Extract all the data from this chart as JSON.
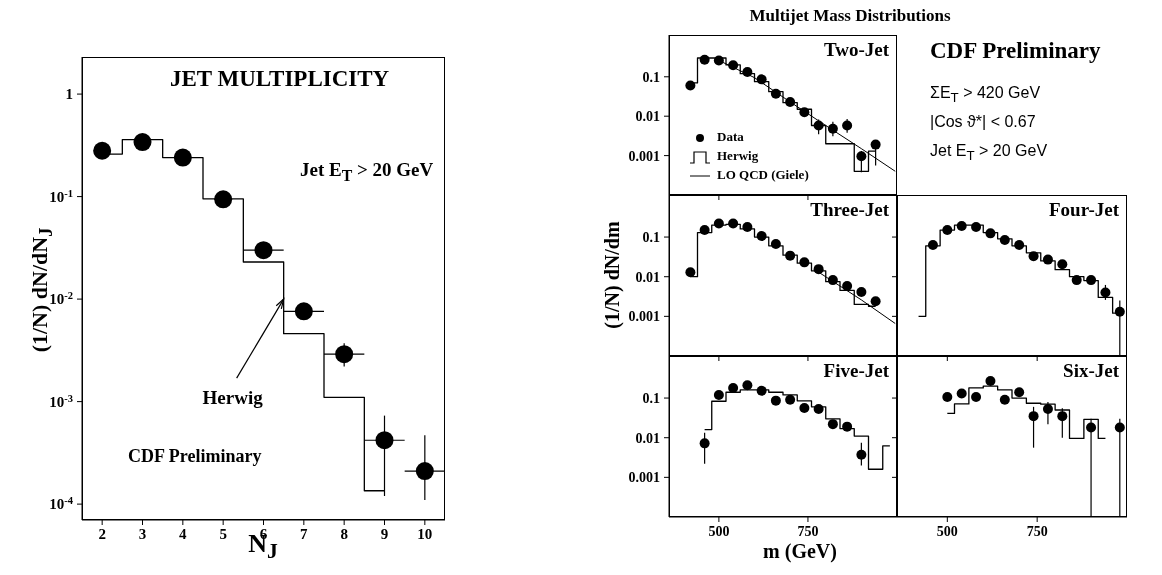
{
  "chart_data": [
    {
      "type": "scatter",
      "title": "JET  MULTIPLICITY",
      "xlabel": "N$_{J}$",
      "ylabel": "(1/N)  dN/dN$_{J}$",
      "log": "y",
      "xlim": [
        1.5,
        10.5
      ],
      "xticks": [
        2,
        3,
        4,
        5,
        6,
        7,
        8,
        9,
        10
      ],
      "ylim": [
        7e-05,
        2.3
      ],
      "yticks": [
        {
          "value": 0.0001,
          "label": "10$^{-4}$"
        },
        {
          "value": 0.001,
          "label": "10$^{-3}$"
        },
        {
          "value": 0.01,
          "label": "10$^{-2}$"
        },
        {
          "value": 0.1,
          "label": "10$^{-1}$"
        },
        1
      ],
      "annotations": [
        "Jet E$_{T}$ > 20 GeV",
        {
          "text": "Herwig",
          "x": 6.5,
          "y": 0.01
        },
        "CDF Preliminary"
      ],
      "series": [
        {
          "type": "scatter",
          "marker": "circle",
          "color": "#000000",
          "x": [
            2,
            3,
            4,
            5,
            6,
            7,
            8,
            9,
            10
          ],
          "values": [
            0.28,
            0.34,
            0.24,
            0.094,
            0.03,
            0.0076,
            0.0029,
            0.00042,
            0.00021
          ],
          "errors": [
            null,
            null,
            null,
            null,
            null,
            null,
            [
              0.0022,
              0.0037
            ],
            [
              0.00012,
              0.00073
            ],
            [
              0.00011,
              0.00047
            ]
          ],
          "xerrors": [
            null,
            null,
            null,
            null,
            0.5,
            0.5,
            0.5,
            0.5,
            0.5
          ]
        },
        {
          "type": "step",
          "color": "#000000",
          "x": [
            2,
            3,
            4,
            5,
            6,
            7,
            8,
            9
          ],
          "values": [
            0.26,
            0.36,
            0.24,
            0.095,
            0.023,
            0.0046,
            0.0011,
            0.000135
          ]
        }
      ]
    },
    {
      "type": "scatter",
      "title": "Two-Jet",
      "log": "y",
      "legend": "bottom left",
      "tick_labels": "y",
      "xlim": [
        360,
        1000
      ],
      "xticks": [
        500,
        750
      ],
      "ylim": [
        0.0001,
        1.15
      ],
      "yticks": [
        0.001,
        0.01,
        0.1
      ],
      "series": [
        {
          "type": "scatter",
          "name": "Data",
          "marker": "circle",
          "color": "#000000",
          "x": [
            420,
            460,
            500,
            540,
            580,
            620,
            660,
            700,
            740,
            780,
            820,
            860,
            900,
            940
          ],
          "values": [
            0.06,
            0.27,
            0.26,
            0.196,
            0.133,
            0.086,
            0.037,
            0.023,
            0.0126,
            0.0058,
            0.0048,
            0.0058,
            0.00096,
            0.0019
          ],
          "errors": [
            null,
            null,
            null,
            null,
            null,
            null,
            null,
            null,
            null,
            [
              0.0035,
              0.0082
            ],
            [
              0.0031,
              0.0072
            ],
            [
              0.0038,
              0.0085
            ],
            [
              0.00038,
              0.0013
            ],
            [
              0.00056,
              0.0024
            ]
          ]
        },
        {
          "type": "step",
          "name": "Herwig",
          "color": "#000000",
          "x": [
            420,
            460,
            500,
            540,
            580,
            620,
            660,
            700,
            740,
            780,
            820,
            860,
            900,
            940
          ],
          "values": [
            0.07,
            0.3,
            0.3,
            0.2,
            0.12,
            0.075,
            0.042,
            0.022,
            0.015,
            0.0058,
            0.002,
            0.002,
            0.0004,
            0.0013
          ]
        },
        {
          "type": "line",
          "name": "LO QCD (Giele)",
          "color": "#000000",
          "x": [
            500,
            600,
            700,
            800,
            900,
            995
          ],
          "values": [
            0.26,
            0.095,
            0.023,
            0.0058,
            0.0015,
            0.0004
          ]
        }
      ]
    },
    {
      "type": "scatter",
      "title": "Three-Jet",
      "ylabel": "(1/N)  dN/dm",
      "log": "y",
      "tick_labels": "y",
      "xlim": [
        360,
        1000
      ],
      "xticks": [
        500,
        750
      ],
      "ylim": [
        0.0001,
        1.15
      ],
      "yticks": [
        0.001,
        0.01,
        0.1
      ],
      "series": [
        {
          "type": "scatter",
          "marker": "circle",
          "color": "#000000",
          "x": [
            420,
            460,
            500,
            540,
            580,
            620,
            660,
            700,
            740,
            780,
            820,
            860,
            900,
            940
          ],
          "values": [
            0.013,
            0.15,
            0.22,
            0.22,
            0.18,
            0.106,
            0.067,
            0.034,
            0.023,
            0.0155,
            0.0082,
            0.0058,
            0.0041,
            0.0024
          ]
        },
        {
          "type": "step",
          "color": "#000000",
          "x": [
            420,
            460,
            500,
            540,
            580,
            620,
            660,
            700,
            740,
            780,
            820,
            860,
            900,
            940
          ],
          "values": [
            0.01,
            0.13,
            0.2,
            0.21,
            0.16,
            0.1,
            0.06,
            0.035,
            0.022,
            0.014,
            0.0075,
            0.0045,
            0.002,
            0.0018
          ]
        },
        {
          "type": "line",
          "color": "#000000",
          "x": [
            780,
            900,
            995
          ],
          "values": [
            0.013,
            0.0026,
            0.00066
          ]
        }
      ]
    },
    {
      "type": "scatter",
      "title": "Four-Jet",
      "log": "y",
      "tick_labels": false,
      "xlim": [
        360,
        1000
      ],
      "xticks": [
        500,
        750
      ],
      "ylim": [
        0.0001,
        1.15
      ],
      "yticks": [
        0.001,
        0.01,
        0.1
      ],
      "series": [
        {
          "type": "scatter",
          "marker": "circle",
          "color": "#000000",
          "x": [
            460,
            500,
            540,
            580,
            620,
            660,
            700,
            740,
            780,
            820,
            860,
            900,
            940,
            980
          ],
          "values": [
            0.063,
            0.15,
            0.19,
            0.18,
            0.124,
            0.084,
            0.063,
            0.033,
            0.027,
            0.0207,
            0.0082,
            0.0082,
            0.004,
            0.0013
          ],
          "errors": [
            null,
            null,
            null,
            null,
            null,
            null,
            null,
            null,
            null,
            null,
            null,
            null,
            [
              0.0026,
              0.0062
            ],
            [
              0.0001,
              0.0025
            ]
          ]
        },
        {
          "type": "step",
          "color": "#000000",
          "x": [
            420,
            460,
            500,
            540,
            580,
            620,
            660,
            700,
            740,
            780,
            820,
            860,
            900,
            940,
            980
          ],
          "values": [
            0.001,
            0.06,
            0.15,
            0.2,
            0.2,
            0.13,
            0.09,
            0.06,
            0.04,
            0.025,
            0.015,
            0.01,
            0.008,
            0.003,
            0.0012
          ]
        }
      ]
    },
    {
      "type": "scatter",
      "title": "Five-Jet",
      "xlabel": "m  (GeV)",
      "log": "y",
      "xlim": [
        360,
        1000
      ],
      "xticks": [
        500,
        750
      ],
      "ylim": [
        0.0001,
        1.15
      ],
      "yticks": [
        0.001,
        0.01,
        0.1
      ],
      "series": [
        {
          "type": "scatter",
          "marker": "circle",
          "color": "#000000",
          "x": [
            460,
            500,
            540,
            580,
            620,
            660,
            700,
            740,
            780,
            820,
            860,
            900
          ],
          "values": [
            0.0072,
            0.12,
            0.18,
            0.21,
            0.153,
            0.086,
            0.091,
            0.056,
            0.053,
            0.022,
            0.019,
            0.0037
          ],
          "errors": [
            [
              0.0022,
              0.0134
            ],
            null,
            null,
            null,
            null,
            null,
            null,
            null,
            null,
            null,
            null,
            [
              0.002,
              0.0075
            ]
          ]
        },
        {
          "type": "step",
          "color": "#000000",
          "x": [
            460,
            500,
            540,
            580,
            620,
            660,
            700,
            740,
            780,
            820,
            860,
            900,
            940,
            980
          ],
          "values": [
            0.016,
            0.083,
            0.14,
            0.16,
            0.16,
            0.14,
            0.12,
            0.085,
            0.06,
            0.03,
            0.017,
            0.011,
            0.0016,
            0.0062
          ]
        }
      ]
    },
    {
      "type": "scatter",
      "title": "Six-Jet",
      "log": "y",
      "tick_labels": "x",
      "xlim": [
        360,
        1000
      ],
      "xticks": [
        500,
        750
      ],
      "ylim": [
        0.0001,
        1.15
      ],
      "yticks": [
        0.001,
        0.01,
        0.1
      ],
      "series": [
        {
          "type": "scatter",
          "marker": "circle",
          "color": "#000000",
          "x": [
            500,
            540,
            580,
            620,
            660,
            700,
            740,
            780,
            820,
            900,
            980
          ],
          "values": [
            0.106,
            0.13,
            0.106,
            0.27,
            0.091,
            0.14,
            0.035,
            0.053,
            0.035,
            0.018,
            0.018
          ],
          "errors": [
            null,
            null,
            null,
            null,
            null,
            null,
            [
              0.0056,
              0.06
            ],
            [
              0.022,
              0.08
            ],
            [
              0.01,
              0.055
            ],
            [
              0.0001,
              0.03
            ],
            [
              0.0001,
              0.03
            ]
          ]
        },
        {
          "type": "step",
          "color": "#000000",
          "x": [
            500,
            540,
            580,
            620,
            660,
            700,
            740,
            780,
            820,
            860,
            900,
            940
          ],
          "values": [
            0.041,
            0.071,
            0.18,
            0.2,
            0.16,
            0.1,
            0.074,
            0.07,
            0.05,
            0.0096,
            0.029,
            0.0096
          ]
        }
      ]
    },
    {
      "type": "other",
      "title": "Multijet Mass Distributions",
      "annotations": [
        "CDF Preliminary",
        "ΣE$_{T}$ > 420 GeV",
        "|Cos ϑ*| < 0.67",
        "Jet E$_{T}$ > 20 GeV"
      ]
    }
  ]
}
